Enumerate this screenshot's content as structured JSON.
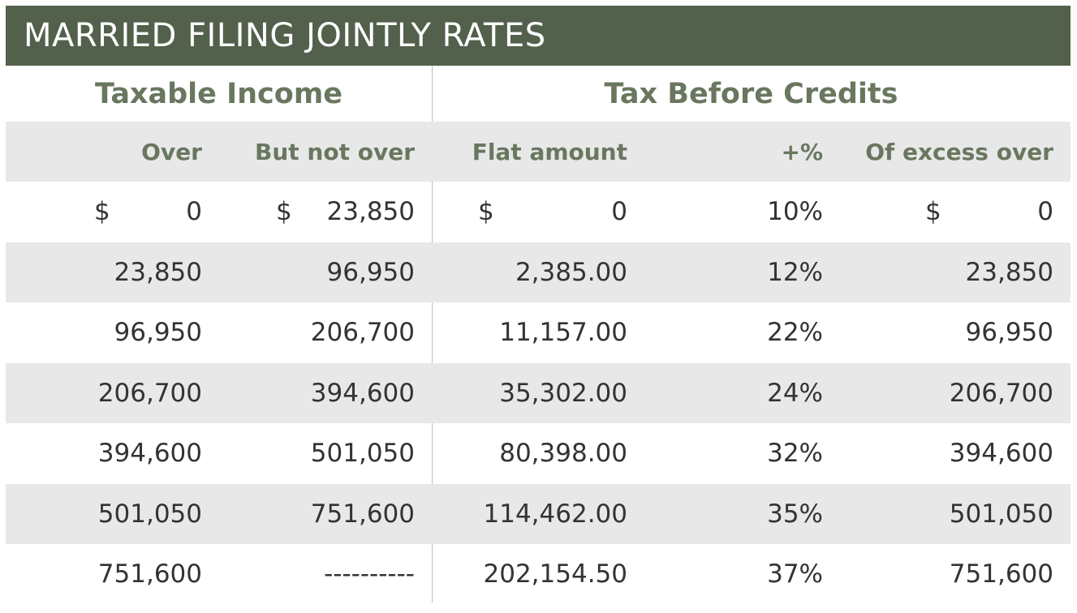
{
  "title": "MARRIED FILING JOINTLY RATES",
  "groups": {
    "taxable_income": "Taxable Income",
    "tax_before_credits": "Tax Before Credits"
  },
  "columns": [
    "Over",
    "But not over",
    "Flat amount",
    "+%",
    "Of excess over"
  ],
  "currency_symbol": "$",
  "rows": [
    [
      "0",
      "23,850",
      "0",
      "10%",
      "0"
    ],
    [
      "23,850",
      "96,950",
      "2,385.00",
      "12%",
      "23,850"
    ],
    [
      "96,950",
      "206,700",
      "11,157.00",
      "22%",
      "96,950"
    ],
    [
      "206,700",
      "394,600",
      "35,302.00",
      "24%",
      "206,700"
    ],
    [
      "394,600",
      "501,050",
      "80,398.00",
      "32%",
      "394,600"
    ],
    [
      "501,050",
      "751,600",
      "114,462.00",
      "35%",
      "501,050"
    ],
    [
      "751,600",
      "----------",
      "202,154.50",
      "37%",
      "751,600"
    ]
  ],
  "colors": {
    "title_bar": "#53604b",
    "header_text": "#69775f",
    "shaded_row": "#e8e8e8",
    "body_text": "#333333"
  }
}
